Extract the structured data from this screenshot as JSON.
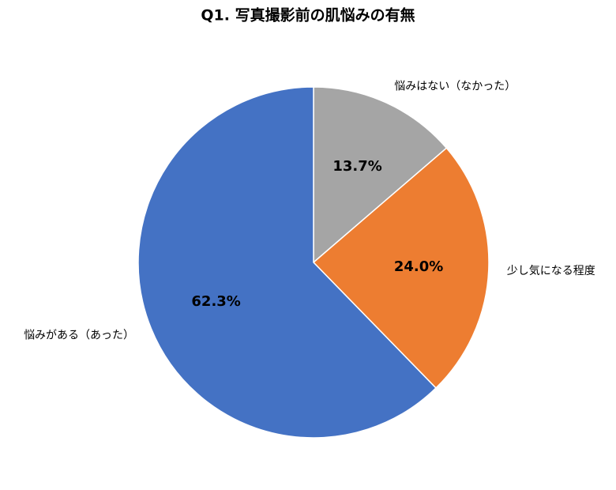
{
  "chart_data": {
    "type": "pie",
    "title": "Q1. 写真撮影前の肌悩みの有無",
    "categories": [
      "悩みはない（なかった）",
      "少し気になる程度",
      "悩みがある（あった）"
    ],
    "values": [
      13.7,
      24.0,
      62.3
    ],
    "value_labels": [
      "13.7%",
      "24.0%",
      "62.3%"
    ],
    "colors": [
      "#a5a5a5",
      "#ed7d31",
      "#4472c4"
    ]
  }
}
